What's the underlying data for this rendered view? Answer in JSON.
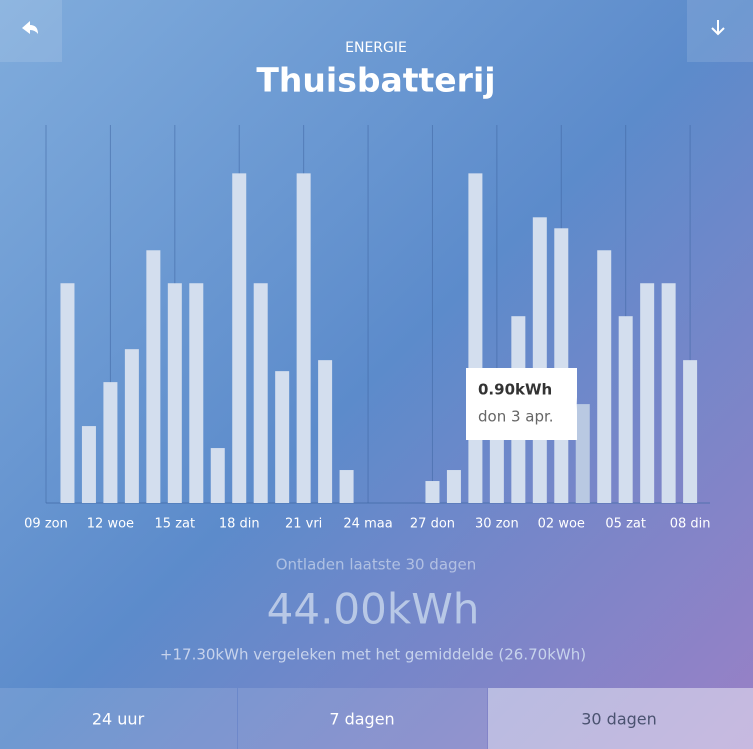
{
  "header": {
    "section": "ENERGIE",
    "title": "Thuisbatterij"
  },
  "chart_data": {
    "type": "bar",
    "color": "#d3deee",
    "categories": [
      "09 zon",
      null,
      null,
      "12 woe",
      null,
      null,
      "15 zat",
      null,
      null,
      "18 din",
      null,
      null,
      "21 vri",
      null,
      null,
      "24 maa",
      null,
      null,
      "27 don",
      null,
      null,
      "30 zon",
      null,
      null,
      "02 woe",
      null,
      null,
      "05 zat",
      null,
      null,
      "08 din"
    ],
    "values": [
      null,
      2.0,
      0.7,
      1.1,
      1.4,
      2.3,
      2.0,
      2.0,
      0.5,
      3.0,
      2.0,
      1.2,
      3.0,
      1.3,
      0.3,
      0,
      0,
      0,
      0.2,
      0.3,
      3.0,
      0.7,
      1.7,
      2.6,
      2.5,
      0.9,
      2.3,
      1.7,
      2.0,
      2.0,
      1.3
    ],
    "ylim": [
      0,
      3.44
    ],
    "tooltip": {
      "value": "0.90kWh",
      "date": "don 3 apr."
    }
  },
  "summary": {
    "label": "Ontladen laatste 30 dagen",
    "total": "44.00kWh",
    "comparison": "+17.30kWh vergeleken met het gemiddelde (26.70kWh)"
  },
  "tabs": [
    "24 uur",
    "7 dagen",
    "30 dagen"
  ]
}
